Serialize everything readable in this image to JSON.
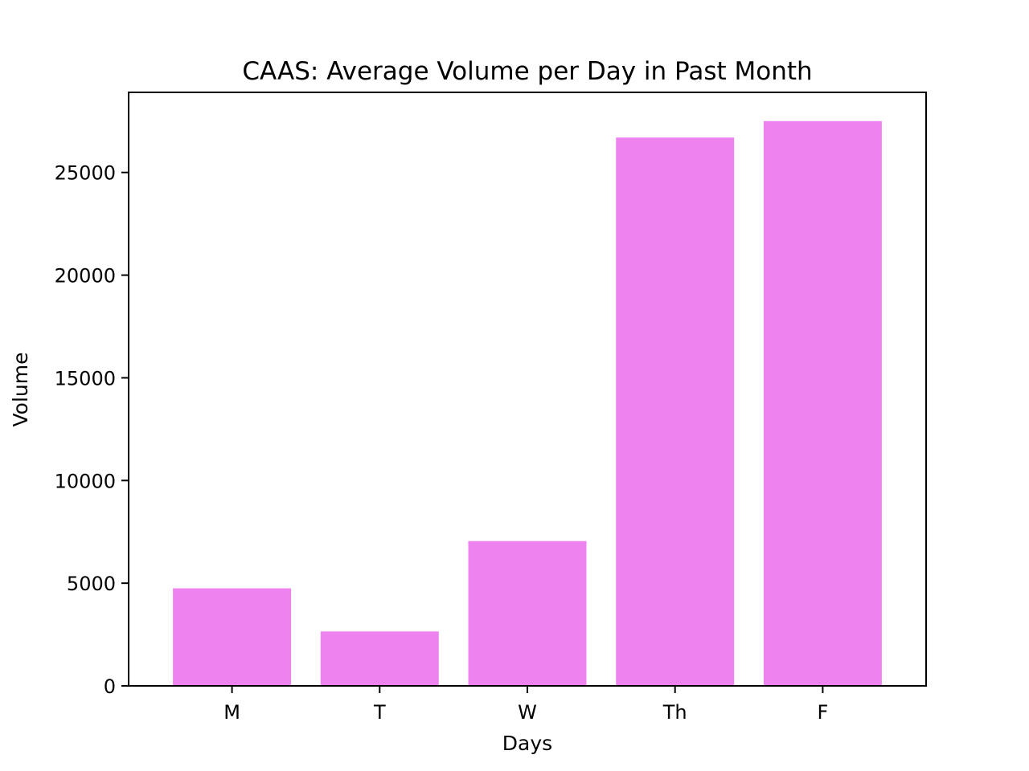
{
  "chart_data": {
    "type": "bar",
    "title": "CAAS: Average Volume per Day in Past Month",
    "xlabel": "Days",
    "ylabel": "Volume",
    "categories": [
      "M",
      "T",
      "W",
      "Th",
      "F"
    ],
    "values": [
      4750,
      2650,
      7050,
      26700,
      27500
    ],
    "ylim": [
      0,
      28900
    ],
    "yticks": [
      0,
      5000,
      10000,
      15000,
      20000,
      25000
    ],
    "bar_color": "#ee82ee",
    "grid": false,
    "legend": "none"
  }
}
